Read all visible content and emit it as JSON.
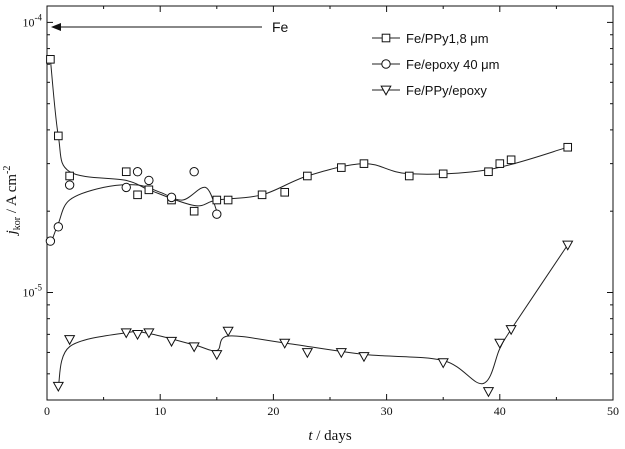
{
  "chart_data": {
    "type": "scatter",
    "title": "",
    "xlabel": {
      "italic": "t",
      "rest": " / days"
    },
    "ylabel": {
      "italic": "j",
      "sub": "kor",
      "rest": " / A cm",
      "sup": "-2"
    },
    "xlim": [
      0,
      50
    ],
    "ylim": [
      4e-06,
      0.000115
    ],
    "yscale": "log",
    "x_ticks": [
      0,
      10,
      20,
      30,
      40,
      50
    ],
    "y_ticks": [
      {
        "value": 1e-05,
        "base": "10",
        "exp": "-5"
      },
      {
        "value": 0.0001,
        "base": "10",
        "exp": "-4"
      }
    ],
    "grid": false,
    "legend_position": "top-right",
    "annotation": {
      "text": "Fe",
      "value": 0.0001,
      "arrow_direction": "left"
    },
    "series": [
      {
        "name": "Fe/PPy1,8 μm",
        "marker": "square",
        "x": [
          0.3,
          1,
          2,
          7,
          8,
          9,
          11,
          13,
          15,
          16,
          19,
          21,
          23,
          26,
          28,
          32,
          35,
          39,
          40,
          41,
          46
        ],
        "y": [
          7.3e-05,
          3.8e-05,
          2.7e-05,
          2.8e-05,
          2.3e-05,
          2.4e-05,
          2.2e-05,
          2e-05,
          2.2e-05,
          2.2e-05,
          2.3e-05,
          2.35e-05,
          2.7e-05,
          2.9e-05,
          3e-05,
          2.7e-05,
          2.75e-05,
          2.8e-05,
          3e-05,
          3.1e-05,
          3.45e-05
        ],
        "curve_x": [
          0.3,
          1,
          2,
          7,
          9,
          13,
          15,
          19,
          23,
          28,
          32,
          39,
          46
        ],
        "curve_y": [
          7.3e-05,
          3.8e-05,
          2.8e-05,
          2.6e-05,
          2.4e-05,
          2.1e-05,
          2.2e-05,
          2.3e-05,
          2.7e-05,
          3e-05,
          2.75e-05,
          2.85e-05,
          3.45e-05
        ]
      },
      {
        "name": "Fe/epoxy 40 μm",
        "marker": "circle",
        "x": [
          0.3,
          1,
          2,
          7,
          8,
          9,
          11,
          13,
          15
        ],
        "y": [
          1.55e-05,
          1.75e-05,
          2.5e-05,
          2.45e-05,
          2.8e-05,
          2.6e-05,
          2.25e-05,
          2.8e-05,
          1.95e-05
        ],
        "curve_x": [
          0.3,
          1,
          2,
          5,
          8,
          10,
          12,
          14,
          15
        ],
        "curve_y": [
          1.5e-05,
          1.8e-05,
          2.2e-05,
          2.45e-05,
          2.5e-05,
          2.35e-05,
          2.2e-05,
          2.45e-05,
          2e-05
        ]
      },
      {
        "name": "Fe/PPy/epoxy",
        "marker": "triangle-down",
        "x": [
          1,
          2,
          7,
          8,
          9,
          11,
          13,
          15,
          16,
          21,
          23,
          26,
          28,
          35,
          39,
          40,
          41,
          46
        ],
        "y": [
          4.5e-06,
          6.7e-06,
          7.1e-06,
          7e-06,
          7.1e-06,
          6.6e-06,
          6.3e-06,
          5.9e-06,
          7.2e-06,
          6.5e-06,
          6e-06,
          6e-06,
          5.8e-06,
          5.5e-06,
          4.3e-06,
          6.5e-06,
          7.3e-06,
          1.5e-05
        ],
        "curve_x": [
          1,
          2,
          7,
          9,
          13,
          15,
          16,
          21,
          28,
          35,
          38.5,
          40,
          41,
          46
        ],
        "curve_y": [
          4.5e-06,
          6.3e-06,
          7.1e-06,
          7.05e-06,
          6.4e-06,
          6.1e-06,
          6.9e-06,
          6.5e-06,
          5.9e-06,
          5.6e-06,
          4.6e-06,
          6.2e-06,
          7.3e-06,
          1.5e-05
        ]
      }
    ]
  }
}
